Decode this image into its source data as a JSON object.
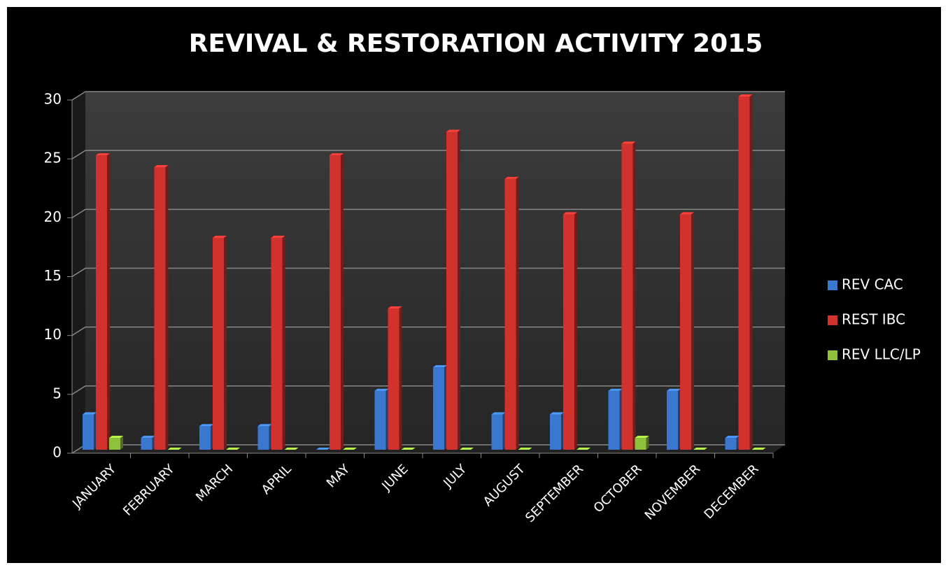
{
  "chart_data": {
    "type": "bar",
    "title": "REVIVAL & RESTORATION ACTIVITY 2015",
    "categories": [
      "JANUARY",
      "FEBRUARY",
      "MARCH",
      "APRIL",
      "MAY",
      "JUNE",
      "JULY",
      "AUGUST",
      "SEPTEMBER",
      "OCTOBER",
      "NOVEMBER",
      "DECEMBER"
    ],
    "series": [
      {
        "name": "REV CAC",
        "color": "#3a78d0",
        "values": [
          3,
          1,
          2,
          2,
          0,
          5,
          7,
          3,
          3,
          5,
          5,
          1
        ]
      },
      {
        "name": "REST IBC",
        "color": "#d2322d",
        "values": [
          25,
          24,
          18,
          18,
          25,
          12,
          27,
          23,
          20,
          26,
          20,
          30
        ]
      },
      {
        "name": "REV LLC/LP",
        "color": "#8fc23a",
        "values": [
          1,
          0,
          0,
          0,
          0,
          0,
          0,
          0,
          0,
          1,
          0,
          0
        ]
      }
    ],
    "ylim": [
      0,
      30
    ],
    "yticks": [
      0,
      5,
      10,
      15,
      20,
      25,
      30
    ],
    "grid": true,
    "legend": "right"
  }
}
